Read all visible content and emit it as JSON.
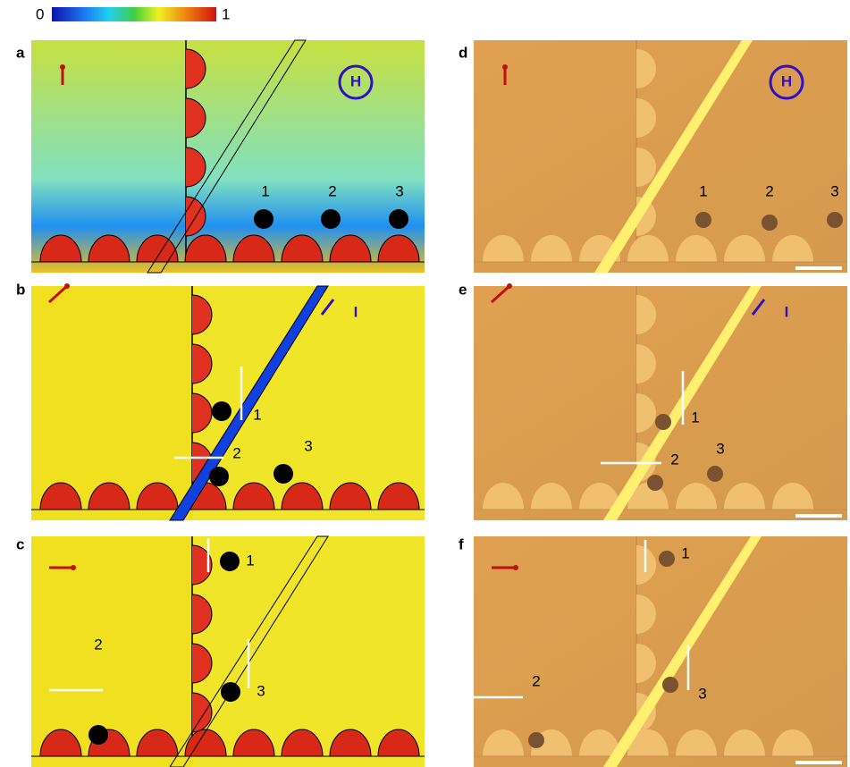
{
  "colorbar": {
    "min_label": "0",
    "max_label": "1"
  },
  "panels": [
    {
      "letter": "a",
      "symbol": "H",
      "labels": [
        "1",
        "2",
        "3"
      ]
    },
    {
      "letter": "b",
      "symbol": "I",
      "labels": [
        "1",
        "2",
        "3"
      ]
    },
    {
      "letter": "c",
      "labels": [
        "1",
        "3",
        "2"
      ]
    },
    {
      "letter": "d",
      "symbol": "H",
      "labels": [
        "1",
        "2",
        "3"
      ]
    },
    {
      "letter": "e",
      "symbol": "I",
      "labels": [
        "1",
        "2",
        "3"
      ]
    },
    {
      "letter": "f",
      "labels": [
        "1",
        "3",
        "2"
      ]
    }
  ]
}
